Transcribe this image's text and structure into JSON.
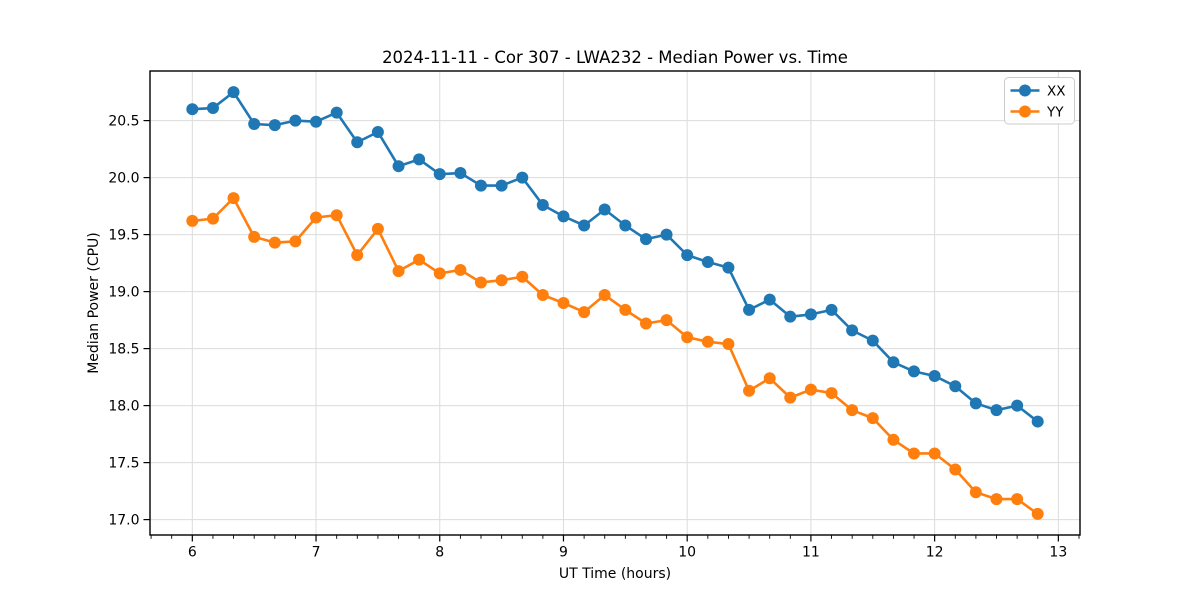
{
  "figure": {
    "title": "2024-11-11 - Cor 307 - LWA232 - Median Power vs. Time",
    "xlabel": "UT Time (hours)",
    "ylabel": "Median Power (CPU)"
  },
  "chart_data": {
    "type": "line",
    "title": "2024-11-11 - Cor 307 - LWA232 - Median Power vs. Time",
    "xlabel": "UT Time (hours)",
    "ylabel": "Median Power (CPU)",
    "xlim": [
      5.658,
      13.175
    ],
    "ylim": [
      16.865,
      20.935
    ],
    "x_ticks": [
      6,
      7,
      8,
      9,
      10,
      11,
      12,
      13
    ],
    "y_ticks": [
      17.0,
      17.5,
      18.0,
      18.5,
      19.0,
      19.5,
      20.0,
      20.5
    ],
    "x_minor_step": 0.16667,
    "grid": true,
    "grid_color": "#dcdcdc",
    "legend_position": "upper right",
    "marker": "o",
    "x": [
      6.0,
      6.167,
      6.333,
      6.5,
      6.667,
      6.833,
      7.0,
      7.167,
      7.333,
      7.5,
      7.667,
      7.833,
      8.0,
      8.167,
      8.333,
      8.5,
      8.667,
      8.833,
      9.0,
      9.167,
      9.333,
      9.5,
      9.667,
      9.833,
      10.0,
      10.167,
      10.333,
      10.5,
      10.667,
      10.833,
      11.0,
      11.167,
      11.333,
      11.5,
      11.667,
      11.833,
      12.0,
      12.167,
      12.333,
      12.5,
      12.667,
      12.833
    ],
    "series": [
      {
        "name": "XX",
        "color": "#1f77b4",
        "values": [
          20.6,
          20.61,
          20.75,
          20.47,
          20.46,
          20.5,
          20.49,
          20.57,
          20.31,
          20.4,
          20.1,
          20.16,
          20.03,
          20.04,
          19.93,
          19.93,
          20.0,
          19.76,
          19.66,
          19.58,
          19.72,
          19.58,
          19.46,
          19.5,
          19.32,
          19.26,
          19.21,
          18.84,
          18.93,
          18.78,
          18.8,
          18.84,
          18.66,
          18.57,
          18.38,
          18.3,
          18.26,
          18.17,
          18.02,
          17.96,
          18.0,
          17.86
        ]
      },
      {
        "name": "YY",
        "color": "#ff7f0e",
        "values": [
          19.62,
          19.64,
          19.82,
          19.48,
          19.43,
          19.44,
          19.65,
          19.67,
          19.32,
          19.55,
          19.18,
          19.28,
          19.16,
          19.19,
          19.08,
          19.1,
          19.13,
          18.97,
          18.9,
          18.82,
          18.97,
          18.84,
          18.72,
          18.75,
          18.6,
          18.56,
          18.54,
          18.13,
          18.24,
          18.07,
          18.14,
          18.11,
          17.96,
          17.89,
          17.7,
          17.58,
          17.58,
          17.44,
          17.24,
          17.18,
          17.18,
          17.05
        ]
      }
    ]
  }
}
